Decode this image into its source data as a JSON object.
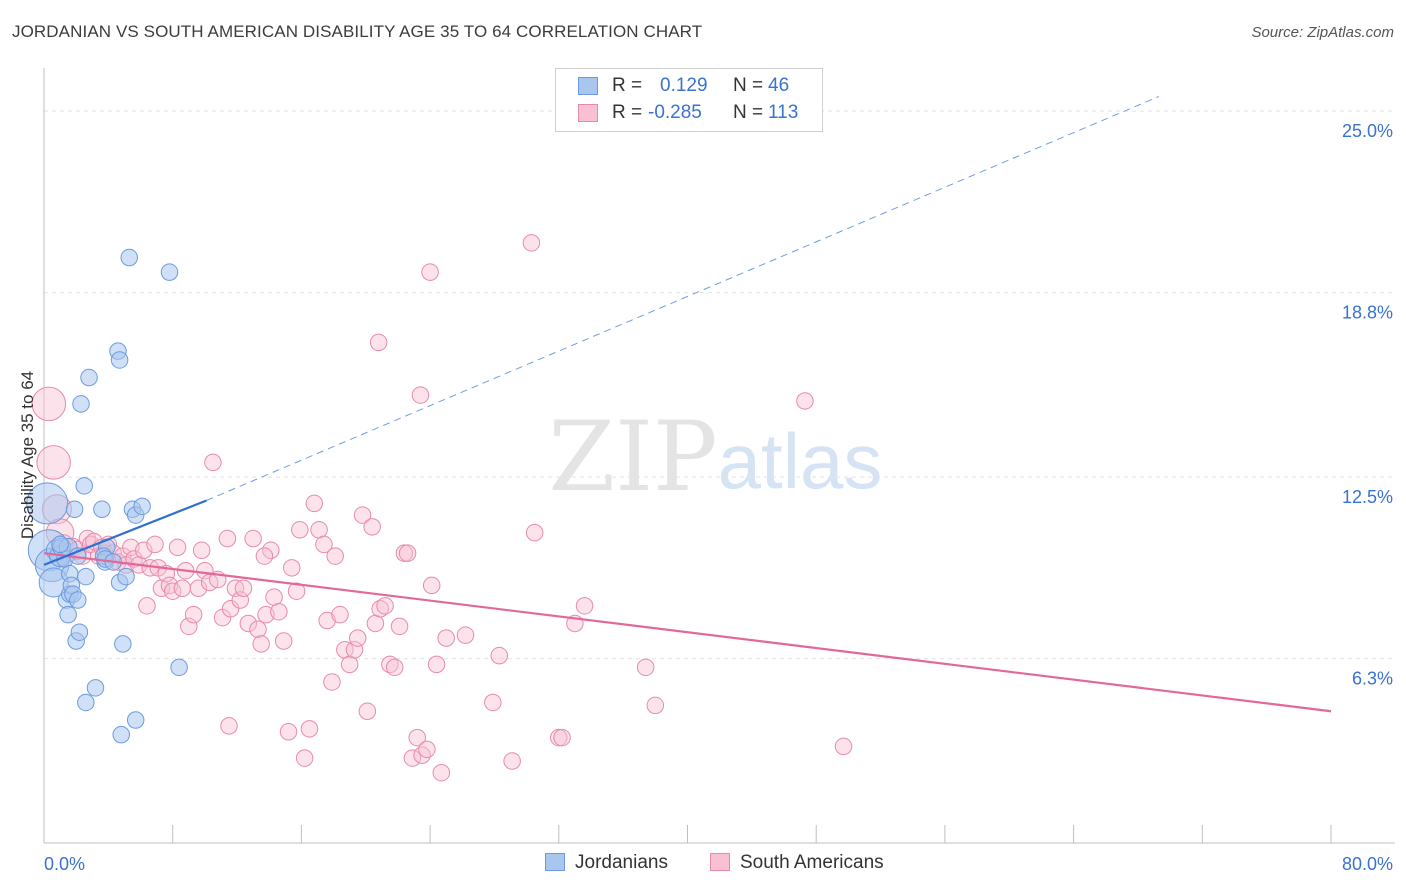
{
  "title": "JORDANIAN VS SOUTH AMERICAN DISABILITY AGE 35 TO 64 CORRELATION CHART",
  "source": "Source: ZipAtlas.com",
  "watermark": {
    "zip": "ZIP",
    "atlas": "atlas"
  },
  "legend": {
    "rows": [
      {
        "r_label": "R =",
        "r_value": "0.129",
        "n_label": "N =",
        "n_value": "46",
        "color": "#a9c7ee",
        "border": "#6b9ae0"
      },
      {
        "r_label": "R =",
        "r_value": "-0.285",
        "n_label": "N =",
        "n_value": "113",
        "color": "#f8c0d2",
        "border": "#e88aa8"
      }
    ]
  },
  "bottom_legend": {
    "jordanians": "Jordanians",
    "south_americans": "South Americans"
  },
  "colors": {
    "jordanian_fill": "#a9c7ee",
    "jordanian_stroke": "#6b9ae0",
    "jordanian_line": "#2f6fd0",
    "south_fill": "#f8c0d2",
    "south_stroke": "#e88aa8",
    "south_line": "#e0699a",
    "axis_text": "#3a72d0",
    "grid": "#e3e3e3"
  },
  "chart_data": {
    "type": "scatter",
    "title": "JORDANIAN VS SOUTH AMERICAN DISABILITY AGE 35 TO 64 CORRELATION CHART",
    "xlabel": "",
    "ylabel": "Disability Age 35 to 64",
    "xlim": [
      0,
      80
    ],
    "ylim": [
      0,
      26.2
    ],
    "x_tick_labels": [
      "0.0%",
      "80.0%"
    ],
    "y_ticks": [
      6.3,
      12.5,
      18.8,
      25.0
    ],
    "y_tick_labels": [
      "6.3%",
      "12.5%",
      "18.8%",
      "25.0%"
    ],
    "grid": true,
    "legend_position": "top-center",
    "series": [
      {
        "name": "Jordanians",
        "r": 0.129,
        "n": 46,
        "trend": {
          "x": [
            0,
            10.1
          ],
          "y": [
            9.5,
            11.7
          ]
        },
        "trend_extended": {
          "x": [
            10.1,
            69.3
          ],
          "y": [
            11.7,
            25.5
          ]
        },
        "points": [
          [
            0.2,
            11.6,
            2.2
          ],
          [
            0.3,
            10.0,
            2.2
          ],
          [
            0.5,
            9.5,
            1.7
          ],
          [
            0.6,
            8.9,
            1.4
          ],
          [
            0.8,
            10.0,
            1.2
          ],
          [
            1.0,
            9.8,
            1.2
          ],
          [
            1.1,
            10.1,
            1.0
          ],
          [
            1.3,
            9.7,
            0.9
          ],
          [
            1.5,
            10.1,
            1.0
          ],
          [
            1.6,
            9.2,
            0.9
          ],
          [
            1.4,
            8.3,
            0.9
          ],
          [
            1.5,
            7.8,
            0.9
          ],
          [
            1.6,
            8.5,
            0.9
          ],
          [
            1.7,
            8.8,
            0.9
          ],
          [
            1.8,
            8.5,
            0.9
          ],
          [
            1.9,
            11.4,
            0.9
          ],
          [
            2.0,
            6.9,
            0.9
          ],
          [
            2.1,
            8.3,
            0.9
          ],
          [
            2.2,
            7.2,
            0.9
          ],
          [
            2.3,
            15.0,
            0.9
          ],
          [
            2.5,
            12.2,
            0.9
          ],
          [
            2.6,
            9.1,
            0.9
          ],
          [
            2.6,
            4.8,
            0.9
          ],
          [
            2.8,
            15.9,
            0.9
          ],
          [
            3.2,
            5.3,
            0.9
          ],
          [
            3.6,
            11.4,
            0.9
          ],
          [
            3.8,
            9.6,
            0.9
          ],
          [
            3.9,
            10.1,
            0.9
          ],
          [
            3.7,
            9.8,
            0.9
          ],
          [
            3.8,
            9.7,
            0.9
          ],
          [
            4.3,
            9.6,
            0.9
          ],
          [
            4.7,
            8.9,
            0.9
          ],
          [
            4.6,
            16.8,
            0.9
          ],
          [
            4.7,
            16.5,
            0.9
          ],
          [
            4.8,
            3.7,
            0.9
          ],
          [
            4.9,
            6.8,
            0.9
          ],
          [
            5.1,
            9.1,
            0.9
          ],
          [
            5.3,
            20.0,
            0.9
          ],
          [
            5.5,
            11.4,
            0.9
          ],
          [
            5.7,
            11.2,
            0.9
          ],
          [
            5.7,
            4.2,
            0.9
          ],
          [
            6.1,
            11.5,
            0.9
          ],
          [
            7.8,
            19.5,
            0.9
          ],
          [
            8.4,
            6.0,
            0.9
          ],
          [
            2.1,
            9.8,
            0.9
          ],
          [
            1.0,
            10.2,
            0.9
          ]
        ]
      },
      {
        "name": "South Americans",
        "r": -0.285,
        "n": 113,
        "trend": {
          "x": [
            0,
            80
          ],
          "y": [
            9.9,
            4.5
          ]
        },
        "points": [
          [
            0.3,
            15.0,
            1.7
          ],
          [
            0.6,
            13.0,
            1.7
          ],
          [
            0.8,
            11.4,
            1.4
          ],
          [
            1.0,
            10.6,
            1.3
          ],
          [
            1.2,
            10.2,
            1.1
          ],
          [
            1.5,
            9.9,
            1.0
          ],
          [
            1.8,
            10.1,
            1.0
          ],
          [
            2.1,
            10.0,
            1.0
          ],
          [
            2.4,
            9.8,
            0.9
          ],
          [
            2.7,
            10.4,
            0.9
          ],
          [
            2.9,
            10.2,
            0.9
          ],
          [
            3.1,
            10.3,
            0.9
          ],
          [
            3.4,
            9.8,
            0.9
          ],
          [
            3.6,
            10.1,
            0.9
          ],
          [
            3.8,
            9.9,
            0.9
          ],
          [
            4.0,
            10.2,
            0.9
          ],
          [
            4.3,
            9.9,
            0.9
          ],
          [
            4.6,
            9.6,
            0.9
          ],
          [
            4.9,
            9.8,
            0.9
          ],
          [
            5.1,
            9.5,
            0.9
          ],
          [
            5.4,
            10.1,
            0.9
          ],
          [
            5.6,
            9.7,
            0.9
          ],
          [
            5.9,
            9.5,
            0.9
          ],
          [
            6.2,
            10.0,
            0.9
          ],
          [
            6.4,
            8.1,
            0.9
          ],
          [
            6.6,
            9.4,
            0.9
          ],
          [
            6.9,
            10.2,
            0.9
          ],
          [
            7.1,
            9.4,
            0.9
          ],
          [
            7.3,
            8.7,
            0.9
          ],
          [
            7.6,
            9.2,
            0.9
          ],
          [
            7.8,
            8.8,
            0.9
          ],
          [
            8.0,
            8.6,
            0.9
          ],
          [
            8.3,
            10.1,
            0.9
          ],
          [
            8.6,
            8.7,
            0.9
          ],
          [
            8.8,
            9.3,
            0.9
          ],
          [
            9.0,
            7.4,
            0.9
          ],
          [
            9.3,
            7.8,
            0.9
          ],
          [
            9.6,
            8.7,
            0.9
          ],
          [
            9.8,
            10.0,
            0.9
          ],
          [
            10.0,
            9.3,
            0.9
          ],
          [
            10.3,
            8.9,
            0.9
          ],
          [
            10.5,
            13.0,
            0.9
          ],
          [
            10.8,
            9.0,
            0.9
          ],
          [
            11.1,
            7.7,
            0.9
          ],
          [
            11.4,
            10.4,
            0.9
          ],
          [
            11.6,
            8.0,
            0.9
          ],
          [
            11.9,
            8.7,
            0.9
          ],
          [
            12.2,
            8.3,
            0.9
          ],
          [
            12.4,
            8.7,
            0.9
          ],
          [
            12.7,
            7.5,
            0.9
          ],
          [
            13.0,
            10.4,
            0.9
          ],
          [
            13.3,
            7.3,
            0.9
          ],
          [
            13.5,
            6.8,
            0.9
          ],
          [
            13.8,
            7.8,
            0.9
          ],
          [
            14.1,
            10.0,
            0.9
          ],
          [
            14.3,
            8.4,
            0.9
          ],
          [
            14.6,
            7.9,
            0.9
          ],
          [
            14.9,
            6.9,
            0.9
          ],
          [
            15.2,
            3.8,
            0.9
          ],
          [
            15.4,
            9.4,
            0.9
          ],
          [
            15.7,
            8.6,
            0.9
          ],
          [
            15.9,
            10.7,
            0.9
          ],
          [
            16.2,
            2.9,
            0.9
          ],
          [
            16.5,
            3.9,
            0.9
          ],
          [
            16.8,
            11.6,
            0.9
          ],
          [
            17.1,
            10.7,
            0.9
          ],
          [
            17.4,
            10.2,
            0.9
          ],
          [
            17.6,
            7.6,
            0.9
          ],
          [
            17.9,
            5.5,
            0.9
          ],
          [
            18.1,
            9.8,
            0.9
          ],
          [
            18.4,
            7.8,
            0.9
          ],
          [
            18.7,
            6.6,
            0.9
          ],
          [
            19.0,
            6.1,
            0.9
          ],
          [
            19.3,
            6.6,
            0.9
          ],
          [
            19.5,
            7.0,
            0.9
          ],
          [
            19.8,
            11.2,
            0.9
          ],
          [
            20.1,
            4.5,
            0.9
          ],
          [
            20.4,
            10.8,
            0.9
          ],
          [
            20.6,
            7.5,
            0.9
          ],
          [
            20.9,
            8.0,
            0.9
          ],
          [
            21.2,
            8.1,
            0.9
          ],
          [
            21.5,
            6.1,
            0.9
          ],
          [
            21.8,
            6.0,
            0.9
          ],
          [
            22.1,
            7.4,
            0.9
          ],
          [
            22.4,
            9.9,
            0.9
          ],
          [
            22.6,
            9.9,
            0.9
          ],
          [
            22.9,
            2.9,
            0.9
          ],
          [
            23.2,
            3.6,
            0.9
          ],
          [
            23.5,
            3.0,
            0.9
          ],
          [
            23.8,
            3.2,
            0.9
          ],
          [
            24.1,
            8.8,
            0.9
          ],
          [
            24.4,
            6.1,
            0.9
          ],
          [
            24.7,
            2.4,
            0.9
          ],
          [
            25.0,
            7.0,
            0.9
          ],
          [
            24.0,
            19.5,
            0.9
          ],
          [
            20.8,
            17.1,
            0.9
          ],
          [
            27.9,
            4.8,
            0.9
          ],
          [
            28.3,
            6.4,
            0.9
          ],
          [
            29.1,
            2.8,
            0.9
          ],
          [
            30.3,
            20.5,
            0.9
          ],
          [
            30.5,
            10.6,
            0.9
          ],
          [
            32.0,
            3.6,
            0.9
          ],
          [
            32.2,
            3.6,
            0.9
          ],
          [
            33.0,
            7.5,
            0.9
          ],
          [
            33.6,
            8.1,
            0.9
          ],
          [
            37.4,
            6.0,
            0.9
          ],
          [
            38.0,
            4.7,
            0.9
          ],
          [
            47.3,
            15.1,
            0.9
          ],
          [
            49.7,
            3.3,
            0.9
          ],
          [
            23.4,
            15.3,
            0.9
          ],
          [
            11.5,
            4.0,
            0.9
          ],
          [
            13.7,
            9.8,
            0.9
          ],
          [
            26.2,
            7.1,
            0.9
          ]
        ]
      }
    ]
  }
}
